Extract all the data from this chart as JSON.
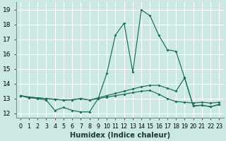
{
  "xlabel": "Humidex (Indice chaleur)",
  "bg_color": "#cce8e4",
  "grid_color": "#ffffff",
  "line_color": "#1a6b5a",
  "xlim": [
    -0.5,
    23.5
  ],
  "ylim": [
    11.7,
    19.5
  ],
  "xticks": [
    0,
    1,
    2,
    3,
    4,
    5,
    6,
    7,
    8,
    9,
    10,
    11,
    12,
    13,
    14,
    15,
    16,
    17,
    18,
    19,
    20,
    21,
    22,
    23
  ],
  "yticks": [
    12,
    13,
    14,
    15,
    16,
    17,
    18,
    19
  ],
  "line1_y": [
    13.2,
    13.05,
    13.0,
    12.9,
    12.2,
    12.4,
    12.2,
    12.1,
    12.1,
    13.0,
    14.7,
    17.3,
    18.1,
    14.8,
    19.0,
    18.6,
    17.3,
    16.3,
    16.2,
    14.4,
    12.5,
    12.55,
    12.45,
    12.6
  ],
  "line2_y": [
    13.2,
    13.1,
    13.05,
    13.0,
    12.95,
    12.9,
    12.92,
    13.0,
    12.9,
    13.05,
    13.2,
    13.35,
    13.5,
    13.65,
    13.8,
    13.9,
    13.9,
    13.7,
    13.5,
    14.4,
    12.5,
    12.55,
    12.45,
    12.6
  ],
  "line3_y": [
    13.2,
    13.1,
    13.05,
    13.0,
    12.95,
    12.9,
    12.92,
    13.0,
    12.9,
    13.0,
    13.1,
    13.2,
    13.3,
    13.4,
    13.5,
    13.55,
    13.3,
    13.0,
    12.8,
    12.75,
    12.7,
    12.75,
    12.7,
    12.75
  ]
}
